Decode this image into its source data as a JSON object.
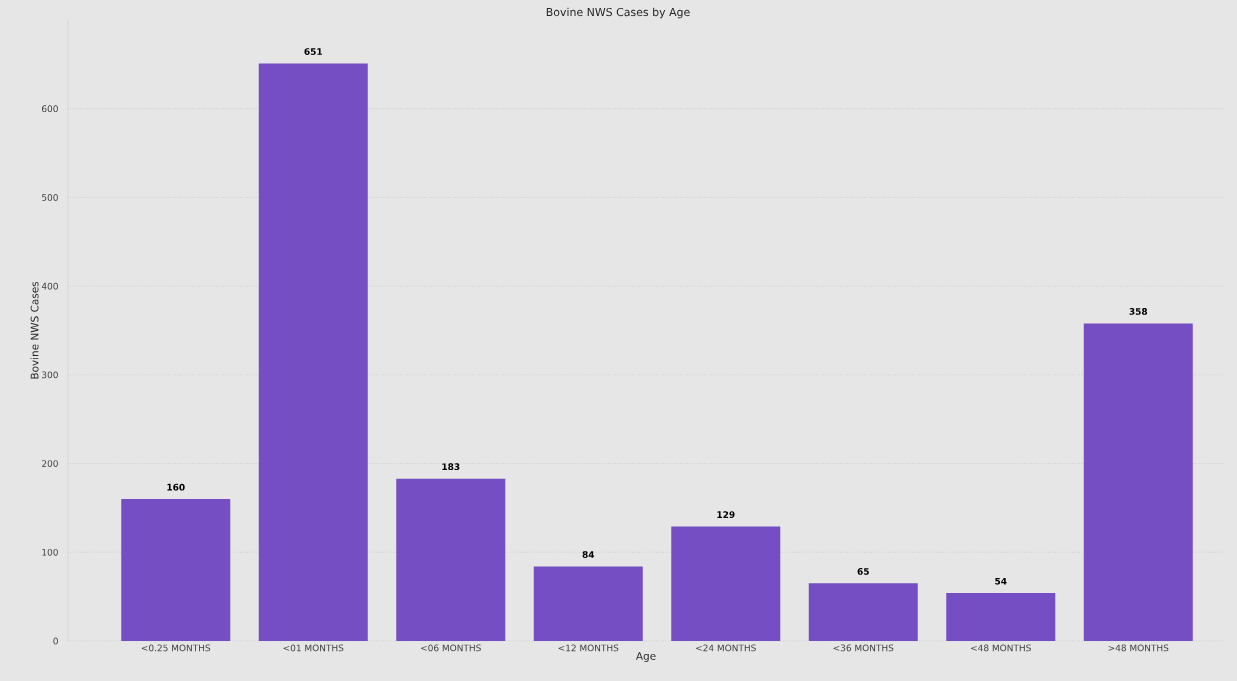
{
  "chart_data": {
    "type": "bar",
    "title": "Bovine NWS Cases by Age",
    "xlabel": "Age",
    "ylabel": "Bovine NWS Cases",
    "categories": [
      "<0.25 MONTHS",
      "<01 MONTHS",
      "<06 MONTHS",
      "<12 MONTHS",
      "<24 MONTHS",
      "<36 MONTHS",
      "<48 MONTHS",
      ">48 MONTHS"
    ],
    "values": [
      160,
      651,
      183,
      84,
      129,
      65,
      54,
      358
    ],
    "color": "#744ec2",
    "ylim": [
      0,
      700
    ],
    "yticks": [
      0,
      100,
      200,
      300,
      400,
      500,
      600
    ],
    "grid": "y",
    "data_labels": true
  }
}
